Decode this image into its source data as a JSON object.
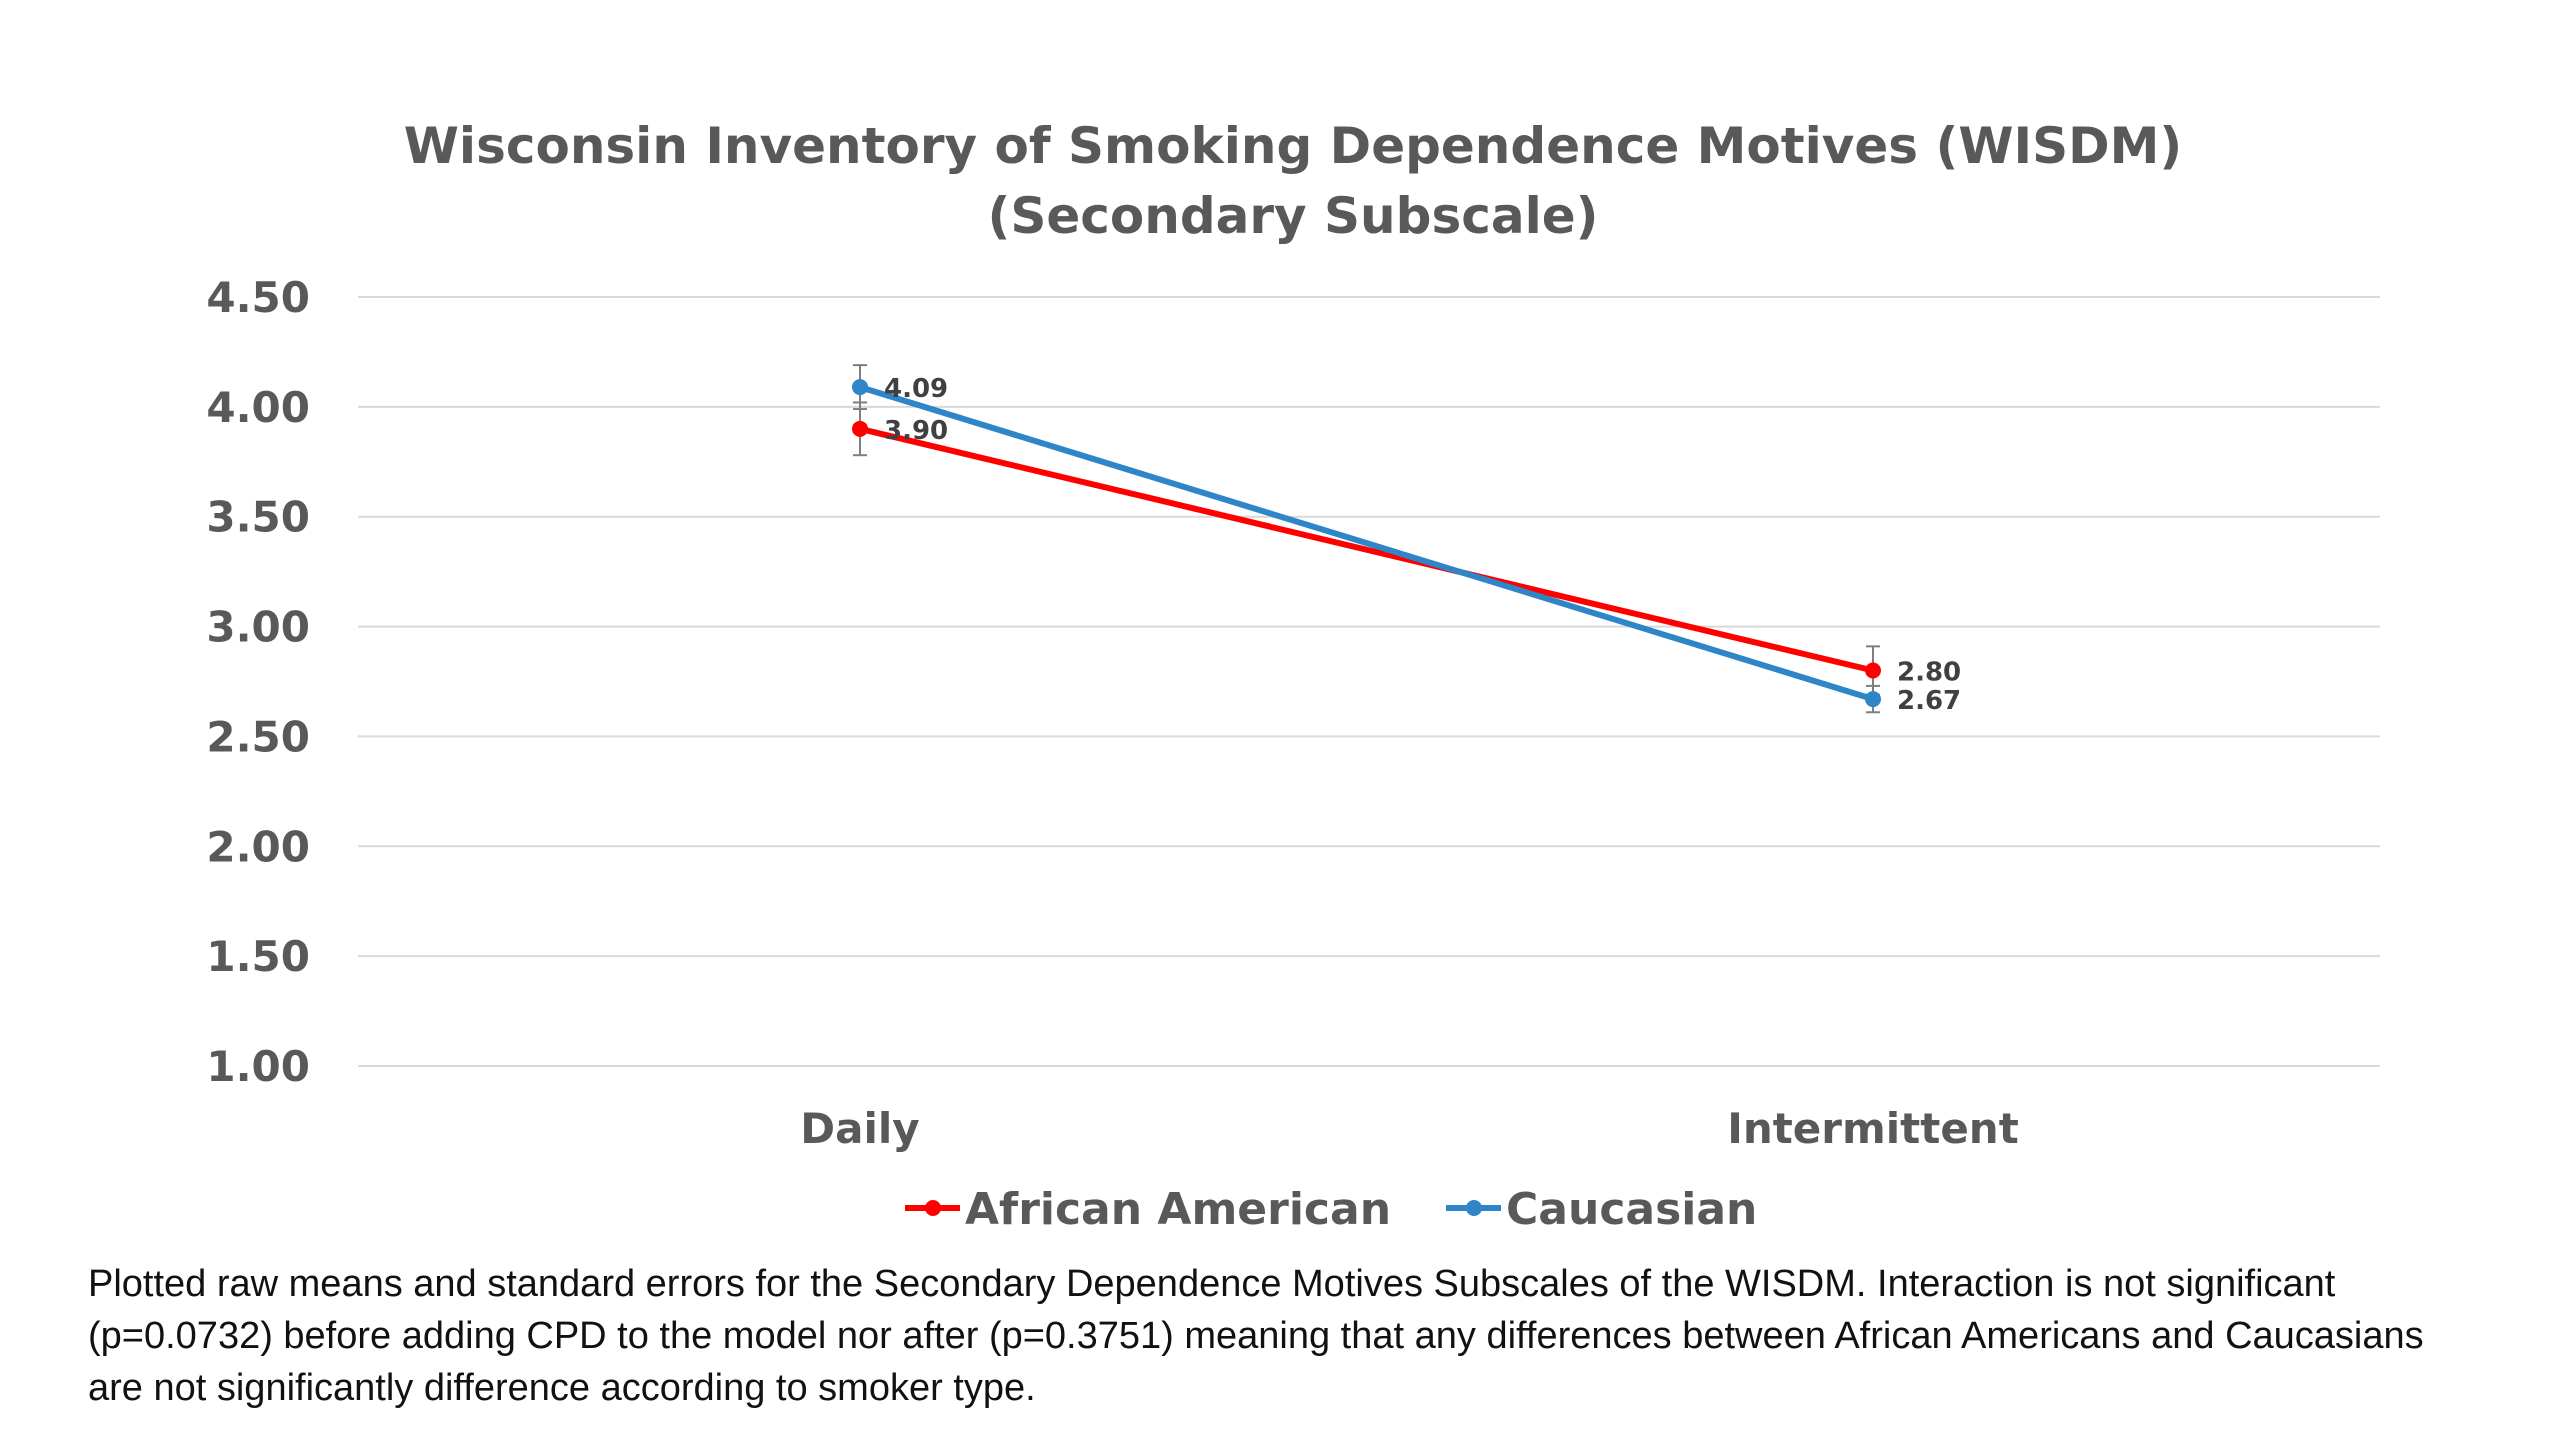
{
  "chart_data": {
    "type": "line",
    "title": "Wisconsin Inventory of Smoking Dependence Motives (WISDM)",
    "subtitle": "(Secondary Subscale)",
    "xlabel": "",
    "ylabel": "",
    "categories": [
      "Daily",
      "Intermittent"
    ],
    "ylim": [
      1.0,
      4.5
    ],
    "yticks": [
      "1.00",
      "1.50",
      "2.00",
      "2.50",
      "3.00",
      "3.50",
      "4.00",
      "4.50"
    ],
    "grid": true,
    "legend_position": "bottom",
    "series": [
      {
        "name": "African American",
        "color": "#ff0000",
        "values": [
          3.9,
          2.8
        ],
        "labels": [
          "3.90",
          "2.80"
        ],
        "error": [
          0.12,
          0.11
        ]
      },
      {
        "name": "Caucasian",
        "color": "#2e86c8",
        "values": [
          4.09,
          2.67
        ],
        "labels": [
          "4.09",
          "2.67"
        ],
        "error": [
          0.1,
          0.06
        ]
      }
    ]
  },
  "caption": "Plotted raw means and standard errors for the Secondary Dependence Motives Subscales of the WISDM. Interaction is not significant (p=0.0732) before adding CPD to the model nor after (p=0.3751) meaning that any differences between African Americans and Caucasians are not significantly difference according to smoker type."
}
